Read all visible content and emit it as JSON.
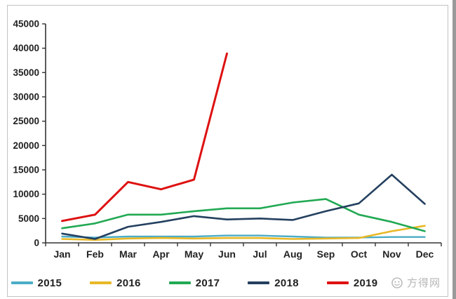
{
  "watermark": {
    "text": "方得网",
    "icon": "smiley-logo-icon",
    "color": "#b7b7b7"
  },
  "axis": {
    "color": "#333333",
    "label_color": "#222222"
  },
  "chart_data": {
    "type": "line",
    "title": "",
    "xlabel": "",
    "ylabel": "",
    "categories": [
      "Jan",
      "Feb",
      "Mar",
      "Apr",
      "May",
      "Jun",
      "Jul",
      "Aug",
      "Sep",
      "Oct",
      "Nov",
      "Dec"
    ],
    "series": [
      {
        "name": "2015",
        "color": "#4BACC6",
        "width": 2.4,
        "values": [
          1300,
          1100,
          1300,
          1300,
          1300,
          1500,
          1500,
          1300,
          1100,
          1100,
          1200,
          1200
        ]
      },
      {
        "name": "2016",
        "color": "#E8B826",
        "width": 2.6,
        "values": [
          800,
          600,
          900,
          1000,
          900,
          1000,
          1000,
          800,
          900,
          1000,
          2400,
          3500
        ]
      },
      {
        "name": "2017",
        "color": "#21A953",
        "width": 2.6,
        "values": [
          3000,
          4000,
          5800,
          5800,
          6500,
          7100,
          7100,
          8300,
          9000,
          5800,
          4300,
          2400
        ]
      },
      {
        "name": "2018",
        "color": "#24405F",
        "width": 2.6,
        "values": [
          1900,
          800,
          3300,
          4300,
          5500,
          4800,
          5000,
          4700,
          6500,
          8100,
          14000,
          8000
        ]
      },
      {
        "name": "2019",
        "color": "#DE1111",
        "width": 3,
        "values": [
          4500,
          5800,
          12500,
          11000,
          13000,
          38900,
          null,
          null,
          null,
          null,
          null,
          null
        ]
      }
    ],
    "ylim": [
      0,
      45000
    ],
    "ytick_step": 5000,
    "grid": false,
    "legend_position": "bottom"
  }
}
